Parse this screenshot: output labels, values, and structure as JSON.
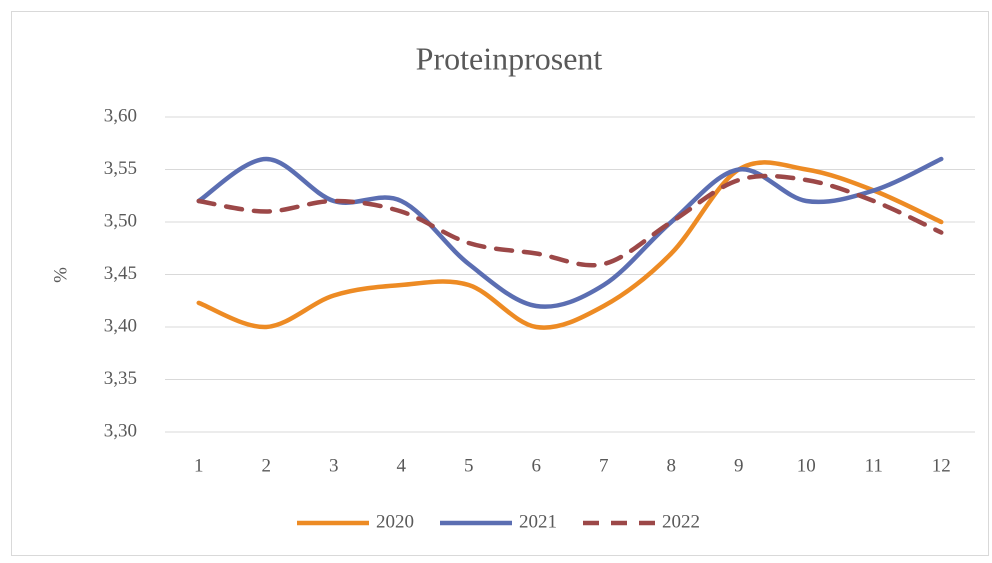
{
  "chart_data": {
    "type": "line",
    "title": "Proteinprosent",
    "y_label": "%",
    "categories": [
      "1",
      "2",
      "3",
      "4",
      "5",
      "6",
      "7",
      "8",
      "9",
      "10",
      "11",
      "12"
    ],
    "series": [
      {
        "name": "2020",
        "color": "#ed8b24",
        "dashed": false,
        "values": [
          3.423,
          3.4,
          3.43,
          3.44,
          3.44,
          3.4,
          3.42,
          3.47,
          3.55,
          3.55,
          3.53,
          3.5
        ]
      },
      {
        "name": "2021",
        "color": "#5b6eb2",
        "dashed": false,
        "values": [
          3.52,
          3.56,
          3.52,
          3.52,
          3.46,
          3.42,
          3.44,
          3.5,
          3.55,
          3.52,
          3.53,
          3.56
        ]
      },
      {
        "name": "2022",
        "color": "#9c4848",
        "dashed": true,
        "values": [
          3.52,
          3.51,
          3.52,
          3.51,
          3.48,
          3.47,
          3.46,
          3.5,
          3.54,
          3.54,
          3.52,
          3.49
        ]
      }
    ],
    "ylim": [
      3.3,
      3.6
    ],
    "yticks": [
      {
        "value": 3.3,
        "label": "3,30"
      },
      {
        "value": 3.35,
        "label": "3,35"
      },
      {
        "value": 3.4,
        "label": "3,40"
      },
      {
        "value": 3.45,
        "label": "3,45"
      },
      {
        "value": 3.5,
        "label": "3,50"
      },
      {
        "value": 3.55,
        "label": "3,55"
      },
      {
        "value": 3.6,
        "label": "3,60"
      }
    ],
    "grid": true,
    "smooth": true,
    "legend": "bottom"
  }
}
